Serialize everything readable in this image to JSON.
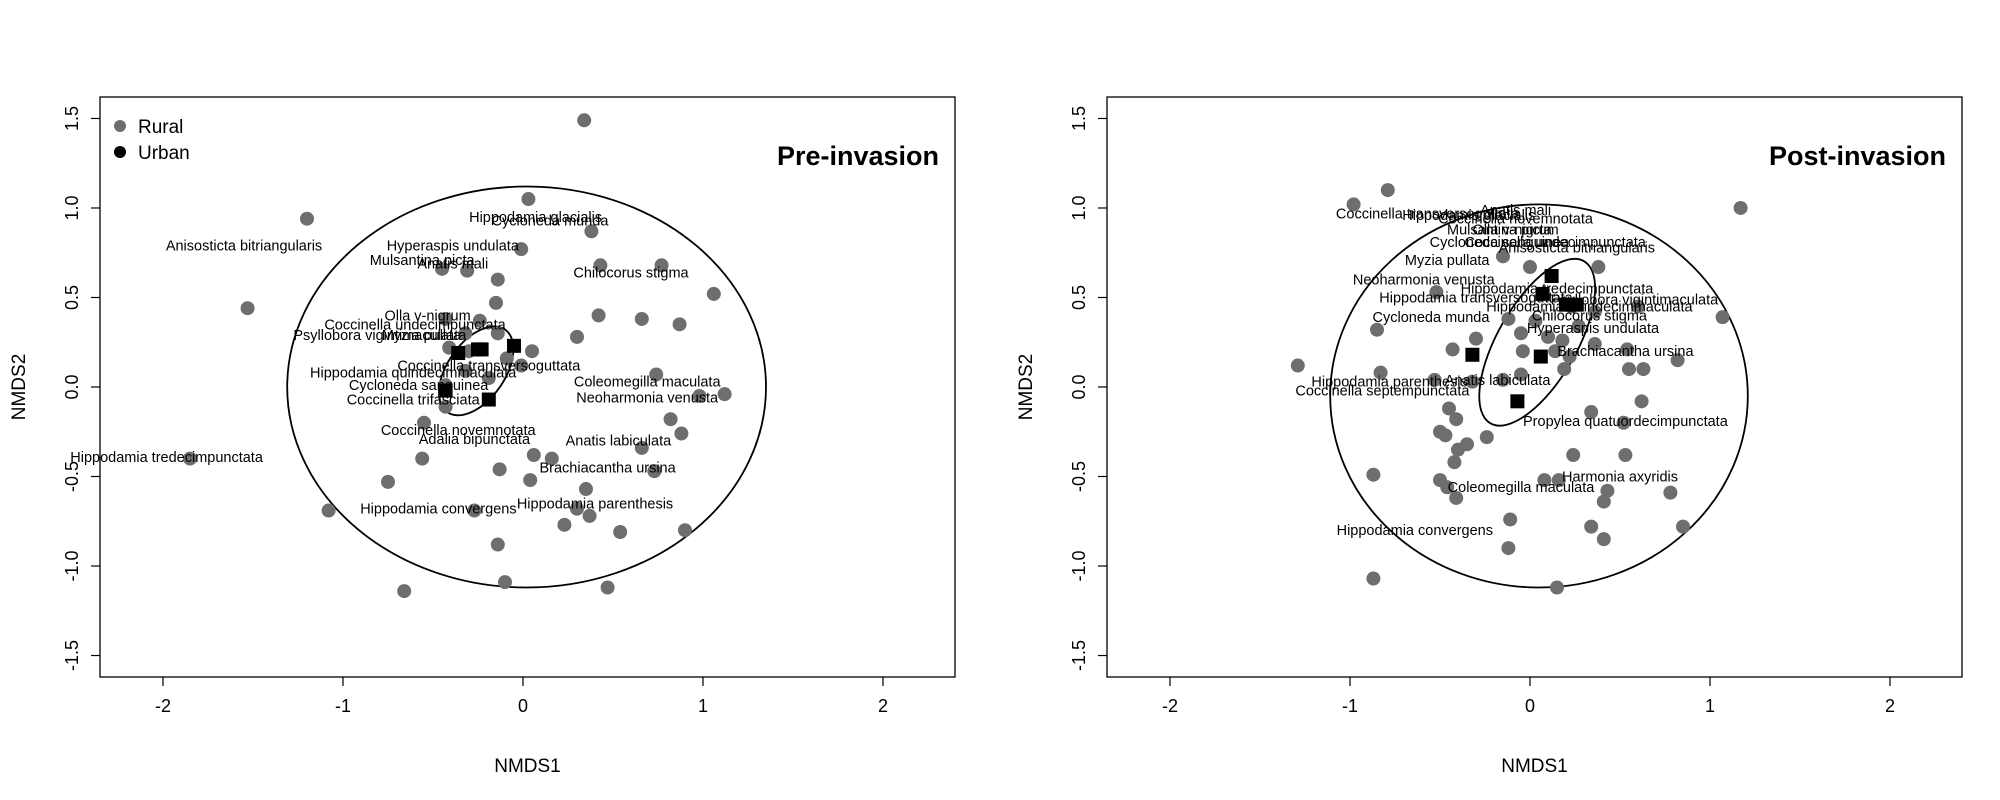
{
  "chart_data": [
    {
      "type": "scatter",
      "title": "Pre-invasion",
      "xlabel": "NMDS1",
      "ylabel": "NMDS2",
      "xlim": [
        -2.35,
        2.4
      ],
      "ylim": [
        -1.62,
        1.62
      ],
      "xticks": [
        "-2",
        "-1",
        "0",
        "1",
        "2"
      ],
      "yticks": [
        "-1.5",
        "-1.0",
        "-0.5",
        "0.0",
        "0.5",
        "1.0",
        "1.5"
      ],
      "legend": {
        "position": "top-left",
        "entries": [
          "Rural",
          "Urban"
        ]
      },
      "colors": {
        "rural": "#6e6e6e",
        "urban": "#000000"
      },
      "series": [
        {
          "name": "Rural",
          "marker": "circle",
          "points": [
            [
              0.34,
              1.49
            ],
            [
              -1.2,
              0.94
            ],
            [
              0.03,
              1.05
            ],
            [
              0.38,
              0.87
            ],
            [
              -0.01,
              0.77
            ],
            [
              -0.45,
              0.66
            ],
            [
              -0.31,
              0.65
            ],
            [
              -0.14,
              0.6
            ],
            [
              0.43,
              0.68
            ],
            [
              0.77,
              0.68
            ],
            [
              1.06,
              0.52
            ],
            [
              -1.53,
              0.44
            ],
            [
              -0.15,
              0.47
            ],
            [
              0.42,
              0.4
            ],
            [
              0.66,
              0.38
            ],
            [
              0.87,
              0.35
            ],
            [
              -0.43,
              0.38
            ],
            [
              -0.24,
              0.37
            ],
            [
              -0.32,
              0.3
            ],
            [
              0.3,
              0.28
            ],
            [
              -0.14,
              0.3
            ],
            [
              -0.41,
              0.22
            ],
            [
              -0.3,
              0.2
            ],
            [
              0.05,
              0.2
            ],
            [
              -0.09,
              0.16
            ],
            [
              -0.01,
              0.12
            ],
            [
              -0.32,
              0.09
            ],
            [
              -0.19,
              0.05
            ],
            [
              -0.43,
              0.01
            ],
            [
              -0.55,
              -0.2
            ],
            [
              -0.43,
              -0.11
            ],
            [
              0.74,
              0.07
            ],
            [
              0.98,
              -0.05
            ],
            [
              1.12,
              -0.04
            ],
            [
              0.82,
              -0.18
            ],
            [
              0.88,
              -0.26
            ],
            [
              -0.56,
              -0.4
            ],
            [
              0.06,
              -0.38
            ],
            [
              0.16,
              -0.4
            ],
            [
              0.66,
              -0.34
            ],
            [
              0.73,
              -0.47
            ],
            [
              -0.13,
              -0.46
            ],
            [
              -1.85,
              -0.4
            ],
            [
              -0.75,
              -0.53
            ],
            [
              0.04,
              -0.52
            ],
            [
              0.35,
              -0.57
            ],
            [
              -1.08,
              -0.69
            ],
            [
              -0.27,
              -0.69
            ],
            [
              0.3,
              -0.68
            ],
            [
              0.37,
              -0.72
            ],
            [
              0.23,
              -0.77
            ],
            [
              0.54,
              -0.81
            ],
            [
              0.9,
              -0.8
            ],
            [
              -0.14,
              -0.88
            ],
            [
              -0.1,
              -1.09
            ],
            [
              -0.66,
              -1.14
            ],
            [
              0.47,
              -1.12
            ]
          ]
        },
        {
          "name": "Urban",
          "marker": "square",
          "points": [
            [
              -0.36,
              0.19
            ],
            [
              -0.23,
              0.21
            ],
            [
              -0.05,
              0.23
            ],
            [
              -0.19,
              -0.07
            ],
            [
              -0.43,
              -0.02
            ],
            [
              -0.25,
              0.21
            ]
          ]
        }
      ],
      "ellipses": [
        {
          "group": "Rural",
          "cx": 0.02,
          "cy": 0.0,
          "rx": 1.33,
          "ry": 1.12,
          "rotation_deg": 0
        },
        {
          "group": "Urban",
          "cx": -0.26,
          "cy": 0.09,
          "rx": 0.28,
          "ry": 0.16,
          "rotation_deg": 55
        }
      ],
      "annotations": [
        {
          "text": "Hippodamia glacialis",
          "x": 0.07,
          "y": 0.95
        },
        {
          "text": "Cycloneda munda",
          "x": 0.15,
          "y": 0.93
        },
        {
          "text": "Anisosticta bitriangularis",
          "x": -1.55,
          "y": 0.79
        },
        {
          "text": "Hyperaspis undulata",
          "x": -0.39,
          "y": 0.79
        },
        {
          "text": "Mulsantina picta",
          "x": -0.56,
          "y": 0.71
        },
        {
          "text": "Anatis mali",
          "x": -0.39,
          "y": 0.69
        },
        {
          "text": "Chilocorus stigma",
          "x": 0.6,
          "y": 0.64
        },
        {
          "text": "Olla v-nigrum",
          "x": -0.53,
          "y": 0.4
        },
        {
          "text": "Coccinella undecimpunctata",
          "x": -0.6,
          "y": 0.35
        },
        {
          "text": "Psyllobora vigintimaculata",
          "x": -0.81,
          "y": 0.29
        },
        {
          "text": "Myzia pullata",
          "x": -0.55,
          "y": 0.29
        },
        {
          "text": "Coccinella transversoguttata",
          "x": -0.19,
          "y": 0.12
        },
        {
          "text": "Hippodamia quindecimmaculata",
          "x": -0.61,
          "y": 0.08
        },
        {
          "text": "Cycloneda sanguinea",
          "x": -0.58,
          "y": 0.01
        },
        {
          "text": "Coccinella trifasciata",
          "x": -0.61,
          "y": -0.07
        },
        {
          "text": "Coleomegilla maculata",
          "x": 0.69,
          "y": 0.03
        },
        {
          "text": "Neoharmonia venusta",
          "x": 0.69,
          "y": -0.06
        },
        {
          "text": "Coccinella novemnotata",
          "x": -0.36,
          "y": -0.24
        },
        {
          "text": "Adalia bipunctata",
          "x": -0.27,
          "y": -0.29
        },
        {
          "text": "Anatis labiculata",
          "x": 0.53,
          "y": -0.3
        },
        {
          "text": "Hippodamia tredecimpunctata",
          "x": -1.98,
          "y": -0.39
        },
        {
          "text": "Brachiacantha ursina",
          "x": 0.47,
          "y": -0.45
        },
        {
          "text": "Hippodamia parenthesis",
          "x": 0.4,
          "y": -0.65
        },
        {
          "text": "Hippodamia convergens",
          "x": -0.47,
          "y": -0.68
        }
      ]
    },
    {
      "type": "scatter",
      "title": "Post-invasion",
      "xlabel": "NMDS1",
      "ylabel": "NMDS2",
      "xlim": [
        -2.35,
        2.4
      ],
      "ylim": [
        -1.62,
        1.62
      ],
      "xticks": [
        "-2",
        "-1",
        "0",
        "1",
        "2"
      ],
      "yticks": [
        "-1.5",
        "-1.0",
        "-0.5",
        "0.0",
        "0.5",
        "1.0",
        "1.5"
      ],
      "colors": {
        "rural": "#6e6e6e",
        "urban": "#000000"
      },
      "series": [
        {
          "name": "Rural",
          "marker": "circle",
          "points": [
            [
              -0.98,
              1.02
            ],
            [
              -0.79,
              1.1
            ],
            [
              1.17,
              1.0
            ],
            [
              -0.15,
              0.73
            ],
            [
              0.0,
              0.67
            ],
            [
              0.38,
              0.67
            ],
            [
              -0.52,
              0.53
            ],
            [
              0.23,
              0.45
            ],
            [
              0.36,
              0.42
            ],
            [
              0.6,
              0.45
            ],
            [
              1.07,
              0.39
            ],
            [
              -0.85,
              0.32
            ],
            [
              -0.12,
              0.38
            ],
            [
              0.03,
              0.37
            ],
            [
              0.27,
              0.34
            ],
            [
              -0.3,
              0.27
            ],
            [
              -0.05,
              0.3
            ],
            [
              0.1,
              0.28
            ],
            [
              0.18,
              0.26
            ],
            [
              0.36,
              0.24
            ],
            [
              -0.43,
              0.21
            ],
            [
              -0.04,
              0.2
            ],
            [
              0.14,
              0.2
            ],
            [
              0.22,
              0.17
            ],
            [
              0.54,
              0.21
            ],
            [
              0.82,
              0.15
            ],
            [
              -1.29,
              0.12
            ],
            [
              -0.83,
              0.08
            ],
            [
              -0.53,
              0.04
            ],
            [
              -0.32,
              0.03
            ],
            [
              -0.15,
              0.04
            ],
            [
              -0.05,
              0.07
            ],
            [
              0.19,
              0.1
            ],
            [
              0.55,
              0.1
            ],
            [
              0.63,
              0.1
            ],
            [
              -0.45,
              -0.12
            ],
            [
              -0.41,
              -0.18
            ],
            [
              0.34,
              -0.14
            ],
            [
              0.62,
              -0.08
            ],
            [
              0.52,
              -0.2
            ],
            [
              -0.47,
              -0.27
            ],
            [
              -0.4,
              -0.35
            ],
            [
              -0.35,
              -0.32
            ],
            [
              -0.24,
              -0.28
            ],
            [
              -0.5,
              -0.25
            ],
            [
              0.24,
              -0.38
            ],
            [
              0.53,
              -0.38
            ],
            [
              0.78,
              -0.59
            ],
            [
              -0.42,
              -0.42
            ],
            [
              -0.87,
              -0.49
            ],
            [
              -0.5,
              -0.52
            ],
            [
              0.08,
              -0.52
            ],
            [
              0.16,
              -0.52
            ],
            [
              0.43,
              -0.58
            ],
            [
              -0.46,
              -0.56
            ],
            [
              -0.41,
              -0.62
            ],
            [
              0.41,
              -0.64
            ],
            [
              -0.11,
              -0.74
            ],
            [
              0.34,
              -0.78
            ],
            [
              0.41,
              -0.85
            ],
            [
              0.85,
              -0.78
            ],
            [
              -0.12,
              -0.9
            ],
            [
              -0.87,
              -1.07
            ],
            [
              0.15,
              -1.12
            ]
          ]
        },
        {
          "name": "Urban",
          "marker": "square",
          "points": [
            [
              0.12,
              0.62
            ],
            [
              0.07,
              0.52
            ],
            [
              0.2,
              0.46
            ],
            [
              0.26,
              0.46
            ],
            [
              -0.32,
              0.18
            ],
            [
              0.06,
              0.17
            ],
            [
              -0.07,
              -0.08
            ]
          ]
        }
      ],
      "ellipses": [
        {
          "group": "Rural",
          "cx": 0.05,
          "cy": -0.05,
          "rx": 1.16,
          "ry": 1.07,
          "rotation_deg": 0
        },
        {
          "group": "Urban",
          "cx": 0.04,
          "cy": 0.25,
          "rx": 0.52,
          "ry": 0.22,
          "rotation_deg": 60
        }
      ],
      "annotations": [
        {
          "text": "Coccinella transversoguttata",
          "x": -0.57,
          "y": 0.97
        },
        {
          "text": "Hippodamia glacialis",
          "x": -0.34,
          "y": 0.96
        },
        {
          "text": "Anatis mali",
          "x": -0.08,
          "y": 0.99
        },
        {
          "text": "Coccinella novemnotata",
          "x": -0.08,
          "y": 0.94
        },
        {
          "text": "Mulsantina picta",
          "x": -0.17,
          "y": 0.88
        },
        {
          "text": "Olla v-nigrum",
          "x": -0.08,
          "y": 0.88
        },
        {
          "text": "Cycloneda sanguinea",
          "x": -0.17,
          "y": 0.81
        },
        {
          "text": "Coccinella undecimpunctata",
          "x": 0.14,
          "y": 0.81
        },
        {
          "text": "Anisosticta bitriangularis",
          "x": 0.26,
          "y": 0.78
        },
        {
          "text": "Myzia pullata",
          "x": -0.46,
          "y": 0.71
        },
        {
          "text": "Neoharmonia venusta",
          "x": -0.59,
          "y": 0.6
        },
        {
          "text": "Hippodamia tredecimpunctata",
          "x": 0.15,
          "y": 0.55
        },
        {
          "text": "Hippodamia transversoguttata",
          "x": -0.3,
          "y": 0.5
        },
        {
          "text": "Psyllobora vigintimaculata",
          "x": 0.58,
          "y": 0.49
        },
        {
          "text": "Hippodamia quindecimmaculata",
          "x": 0.33,
          "y": 0.45
        },
        {
          "text": "Chilocorus stigma",
          "x": 0.33,
          "y": 0.4
        },
        {
          "text": "Cycloneda munda",
          "x": -0.55,
          "y": 0.39
        },
        {
          "text": "Hyperaspis undulata",
          "x": 0.35,
          "y": 0.33
        },
        {
          "text": "Brachiacantha ursina",
          "x": 0.53,
          "y": 0.2
        },
        {
          "text": "Hippodamia parenthesis",
          "x": -0.78,
          "y": 0.03
        },
        {
          "text": "Anatis labiculata",
          "x": -0.18,
          "y": 0.04
        },
        {
          "text": "Coccinella septempunctata",
          "x": -0.82,
          "y": -0.02
        },
        {
          "text": "Propylea quatuordecimpunctata",
          "x": 0.53,
          "y": -0.19
        },
        {
          "text": "Harmonia axyridis",
          "x": 0.5,
          "y": -0.5
        },
        {
          "text": "Coleomegilla maculata",
          "x": -0.05,
          "y": -0.56
        },
        {
          "text": "Hippodamia convergens",
          "x": -0.64,
          "y": -0.8
        }
      ]
    }
  ]
}
